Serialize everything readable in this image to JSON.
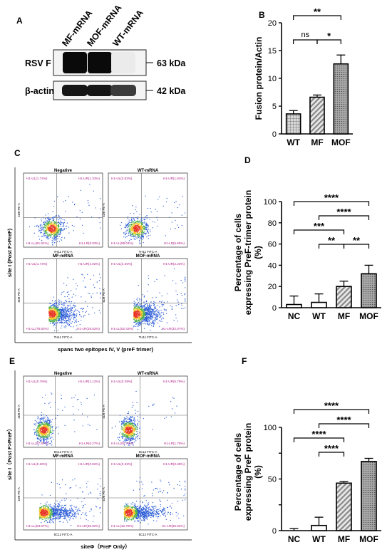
{
  "panels": {
    "a": {
      "letter": "A"
    },
    "b": {
      "letter": "B"
    },
    "c": {
      "letter": "C"
    },
    "d": {
      "letter": "D"
    },
    "e": {
      "letter": "E"
    },
    "f": {
      "letter": "F"
    }
  },
  "western_blot": {
    "lanes": [
      "MF-mRNA",
      "MOF-mRNA",
      "WT-mRNA"
    ],
    "rows": [
      {
        "name": "RSV F",
        "kda": "63 kDa",
        "intensity": [
          1.0,
          1.0,
          0.08
        ]
      },
      {
        "name": "β-actin",
        "kda": "42 kDa",
        "intensity": [
          0.95,
          0.95,
          0.8
        ]
      }
    ]
  },
  "flow_c": {
    "xlabel": "spans two epitopes IV, V  (preF trimer)",
    "ylabel": "site I (Post F>PreF)",
    "subpanels": [
      {
        "title": "Negative",
        "axis_y": "4D8 PE-A",
        "axis_x": "TH11 FITC-A",
        "quads": [
          "H1-UL(1.74%)",
          "H1-UR(1.33%)",
          "H1-LL(91.81%)",
          "H1-LR(5.03%)"
        ],
        "cluster": "small"
      },
      {
        "title": "WT-mRNA",
        "axis_y": "4D8 PE-A",
        "axis_x": "TH11 FITC-A",
        "quads": [
          "H1-UL(3.63%)",
          "H1-UR(1.63%)",
          "H1-LL(89.04%)",
          "H1-LR(5.65%)"
        ],
        "cluster": "small"
      },
      {
        "title": "MF-mRNA",
        "axis_y": "4D8 PE-A",
        "axis_x": "TH11 FITC-A",
        "quads": [
          "H1-UL(1.74%)",
          "H1-UR(1.92%)",
          "H1-LL(78.82%)",
          "H1-LR(18.52%)"
        ],
        "cluster": "wide"
      },
      {
        "title": "MOF-mRNA",
        "axis_y": "4D8 PE-A",
        "axis_x": "TH11 FITC-A",
        "quads": [
          "H1-UL(3.40%)",
          "H1-UR(2.23%)",
          "H1-LL(62.43%)",
          "H1-LR(32.07%)"
        ],
        "cluster": "wide"
      }
    ]
  },
  "flow_e": {
    "xlabel": "siteΦ（PreF Only）",
    "ylabel": "site I（Post F>PreF）",
    "subpanels": [
      {
        "title": "Negative",
        "axis_y": "4D8 PE-A",
        "axis_x": "5C12 FITC-A",
        "quads": [
          "H1-UL(0.78%)",
          "H1-UR(1.12%)",
          "H1-LL(97.87%)",
          "H1-LR(0.27%)"
        ],
        "cluster": "tight"
      },
      {
        "title": "WT-mRNA",
        "axis_y": "4D8 PE-A",
        "axis_x": "5C12 FITC-A",
        "quads": [
          "H1-UL(0.29%)",
          "H1-UR(5.79%)",
          "H1-LL(91.75%)",
          "H1-LR(1.76%)"
        ],
        "cluster": "tight"
      },
      {
        "title": "MF-mRNA",
        "axis_y": "4D8 PE-A",
        "axis_x": "5C12 FITC-A",
        "quads": [
          "H1-UL(0.26%)",
          "H1-UR(0.92%)",
          "H1-LL(53.67%)",
          "H1-LR(45.92%)"
        ],
        "cluster": "spread"
      },
      {
        "title": "MOF-mRNA",
        "axis_y": "4D8 PE-A",
        "axis_x": "5C12 FITC-A",
        "quads": [
          "H1-UL(0.33%)",
          "H1-UR(0.68%)",
          "H1-LL(32.79%)",
          "H1-LR(66.52%)"
        ],
        "cluster": "spread"
      }
    ]
  },
  "chart_data": [
    {
      "panel": "B",
      "type": "bar",
      "categories": [
        "WT",
        "MF",
        "MOF"
      ],
      "values": [
        3.6,
        6.6,
        12.6
      ],
      "errors": [
        0.6,
        0.4,
        1.6
      ],
      "ylabel": "Fusion protein/Actin",
      "ylim": [
        0,
        20
      ],
      "yticks": [
        "0",
        "5",
        "10",
        "15",
        "20"
      ],
      "significance": [
        {
          "from": 0,
          "to": 2,
          "label": "**",
          "level": 3
        },
        {
          "from": 0,
          "to": 1,
          "label": "ns",
          "level": 1
        },
        {
          "from": 1,
          "to": 2,
          "label": "*",
          "level": 1
        }
      ],
      "patterns": [
        "grid",
        "diag",
        "dots"
      ]
    },
    {
      "panel": "D",
      "type": "bar",
      "categories": [
        "NC",
        "WT",
        "MF",
        "MOF"
      ],
      "values": [
        3,
        5,
        20,
        32
      ],
      "errors": [
        8,
        8,
        5,
        8
      ],
      "ylabel": "Percentage of cells expressing PreF-trimer protein (%)",
      "ylabel_lines": [
        "Percentage of cells",
        "expressing PreF-trimer protein",
        "(%)"
      ],
      "ylim": [
        0,
        100
      ],
      "yticks": [
        "0",
        "20",
        "40",
        "60",
        "80",
        "100"
      ],
      "significance": [
        {
          "from": 0,
          "to": 3,
          "label": "****",
          "level": 4
        },
        {
          "from": 1,
          "to": 3,
          "label": "****",
          "level": 3
        },
        {
          "from": 0,
          "to": 2,
          "label": "***",
          "level": 2
        },
        {
          "from": 1,
          "to": 2,
          "label": "**",
          "level": 1
        },
        {
          "from": 2,
          "to": 3,
          "label": "**",
          "level": 1
        }
      ],
      "patterns": [
        "solid",
        "solid",
        "diag",
        "dots"
      ]
    },
    {
      "panel": "F",
      "type": "bar",
      "categories": [
        "NC",
        "WT",
        "MF",
        "MOF"
      ],
      "values": [
        0,
        5,
        46,
        67
      ],
      "errors": [
        2,
        8,
        1.5,
        3
      ],
      "ylabel": "Percentage of cells expressing PreF protein (%)",
      "ylabel_lines": [
        "Percentage of cells",
        "expressing PreF protein",
        "(%)"
      ],
      "ylim": [
        0,
        100
      ],
      "yticks": [
        "0",
        "50",
        "100"
      ],
      "yticks_values": [
        0,
        25,
        50,
        75,
        100
      ],
      "significance": [
        {
          "from": 0,
          "to": 3,
          "label": "****",
          "level": 4
        },
        {
          "from": 1,
          "to": 3,
          "label": "****",
          "level": 3
        },
        {
          "from": 0,
          "to": 2,
          "label": "****",
          "level": 2
        },
        {
          "from": 1,
          "to": 2,
          "label": "****",
          "level": 1
        }
      ],
      "patterns": [
        "solid",
        "solid",
        "diag",
        "dots"
      ]
    }
  ]
}
